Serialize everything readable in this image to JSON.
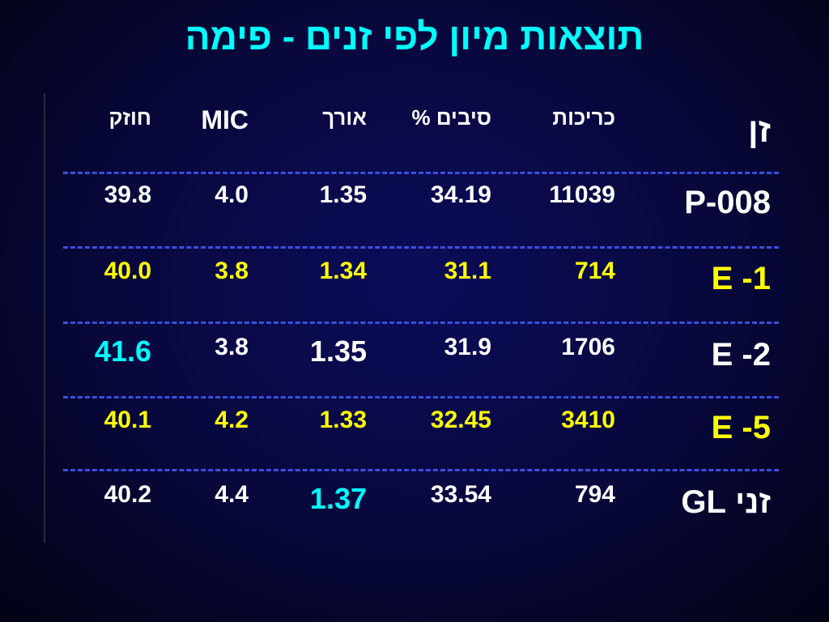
{
  "title": "תוצאות מיון לפי זנים - פימה",
  "table": {
    "header": [
      "זן",
      "כריכות",
      "סיבים %",
      "אורך",
      "MIC",
      "חוזק"
    ],
    "rows": [
      [
        "P-008",
        "11039",
        "34.19",
        "1.35",
        "4.0",
        "39.8"
      ],
      [
        "E -1",
        "714",
        "31.1",
        "1.34",
        "3.8",
        "40.0"
      ],
      [
        "E -2",
        "1706",
        "31.9",
        "1.35",
        "3.8",
        "41.6"
      ],
      [
        "E -5",
        "3410",
        "32.45",
        "1.33",
        "4.2",
        "40.1"
      ],
      [
        "זני GL",
        "794",
        "33.54",
        "1.37",
        "4.4",
        "40.2"
      ]
    ]
  }
}
